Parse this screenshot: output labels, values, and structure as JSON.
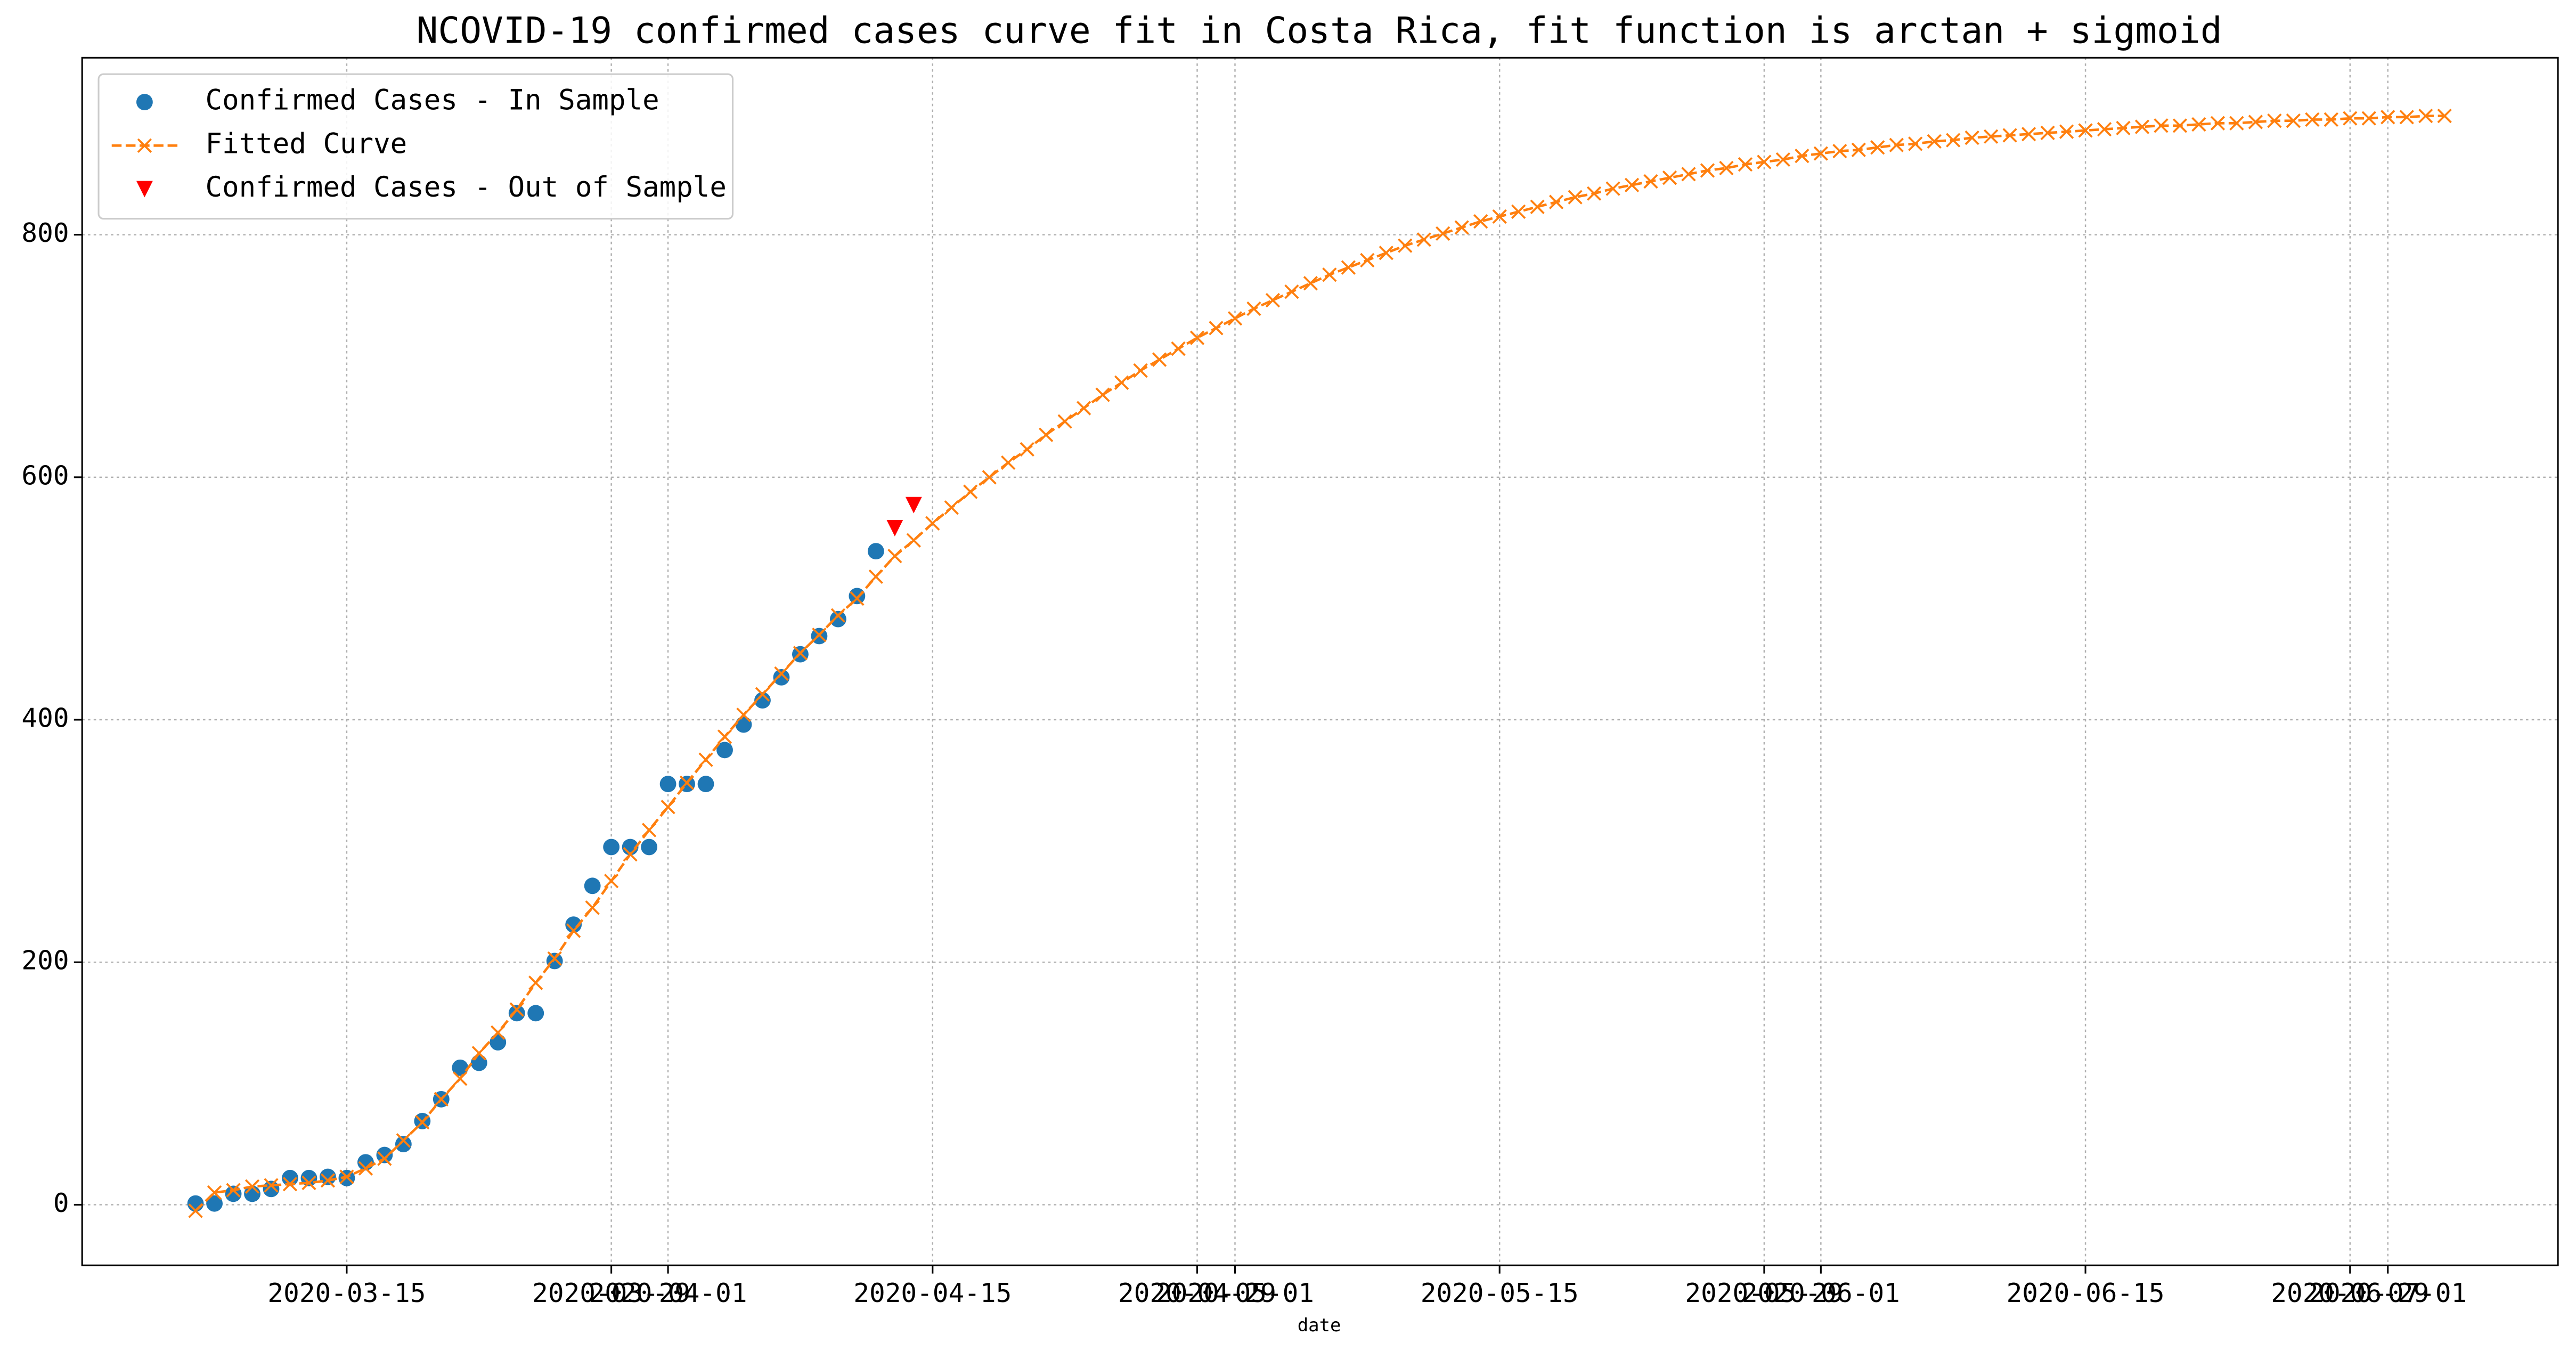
{
  "chart_data": {
    "type": "line",
    "title": "NCOVID-19 confirmed cases curve fit in Costa Rica, fit function is arctan + sigmoid",
    "x_label": "date",
    "x": [
      "2020-03-07",
      "2020-03-08",
      "2020-03-09",
      "2020-03-10",
      "2020-03-11",
      "2020-03-12",
      "2020-03-13",
      "2020-03-14",
      "2020-03-15",
      "2020-03-16",
      "2020-03-17",
      "2020-03-18",
      "2020-03-19",
      "2020-03-20",
      "2020-03-21",
      "2020-03-22",
      "2020-03-23",
      "2020-03-24",
      "2020-03-25",
      "2020-03-26",
      "2020-03-27",
      "2020-03-28",
      "2020-03-29",
      "2020-03-30",
      "2020-03-31",
      "2020-04-01",
      "2020-04-02",
      "2020-04-03",
      "2020-04-04",
      "2020-04-05",
      "2020-04-06",
      "2020-04-07",
      "2020-04-08",
      "2020-04-09",
      "2020-04-10",
      "2020-04-11",
      "2020-04-12",
      "2020-04-13",
      "2020-04-14",
      "2020-04-15",
      "2020-04-16",
      "2020-04-17",
      "2020-04-18",
      "2020-04-19",
      "2020-04-20",
      "2020-04-21",
      "2020-04-22",
      "2020-04-23",
      "2020-04-24",
      "2020-04-25",
      "2020-04-26",
      "2020-04-27",
      "2020-04-28",
      "2020-04-29",
      "2020-04-30",
      "2020-05-01",
      "2020-05-02",
      "2020-05-03",
      "2020-05-04",
      "2020-05-05",
      "2020-05-06",
      "2020-05-07",
      "2020-05-08",
      "2020-05-09",
      "2020-05-10",
      "2020-05-11",
      "2020-05-12",
      "2020-05-13",
      "2020-05-14",
      "2020-05-15",
      "2020-05-16",
      "2020-05-17",
      "2020-05-18",
      "2020-05-19",
      "2020-05-20",
      "2020-05-21",
      "2020-05-22",
      "2020-05-23",
      "2020-05-24",
      "2020-05-25",
      "2020-05-26",
      "2020-05-27",
      "2020-05-28",
      "2020-05-29",
      "2020-05-30",
      "2020-05-31",
      "2020-06-01",
      "2020-06-02",
      "2020-06-03",
      "2020-06-04",
      "2020-06-05",
      "2020-06-06",
      "2020-06-07",
      "2020-06-08",
      "2020-06-09",
      "2020-06-10",
      "2020-06-11",
      "2020-06-12",
      "2020-06-13",
      "2020-06-14",
      "2020-06-15",
      "2020-06-16",
      "2020-06-17",
      "2020-06-18",
      "2020-06-19",
      "2020-06-20",
      "2020-06-21",
      "2020-06-22",
      "2020-06-23",
      "2020-06-24",
      "2020-06-25",
      "2020-06-26",
      "2020-06-27",
      "2020-06-28",
      "2020-06-29",
      "2020-06-30",
      "2020-07-01",
      "2020-07-02",
      "2020-07-03",
      "2020-07-04"
    ],
    "series": [
      {
        "name": "Confirmed Cases - In Sample",
        "color": "#1f77b4",
        "marker": "o",
        "values": [
          1,
          1,
          9,
          9,
          13,
          22,
          22,
          23,
          22,
          35,
          41,
          50,
          69,
          87,
          113,
          117,
          134,
          158,
          158,
          201,
          231,
          263,
          295,
          295,
          295,
          347,
          347,
          347,
          375,
          396,
          416,
          435,
          454,
          469,
          483,
          502,
          539,
          null,
          null,
          null,
          null,
          null,
          null,
          null,
          null,
          null,
          null,
          null,
          null,
          null,
          null,
          null,
          null,
          null,
          null,
          null,
          null,
          null,
          null,
          null,
          null,
          null,
          null,
          null,
          null,
          null,
          null,
          null,
          null,
          null,
          null,
          null,
          null,
          null,
          null,
          null,
          null,
          null,
          null,
          null,
          null,
          null,
          null,
          null,
          null,
          null,
          null,
          null,
          null,
          null,
          null,
          null,
          null,
          null,
          null,
          null,
          null,
          null,
          null,
          null,
          null,
          null,
          null,
          null,
          null,
          null,
          null,
          null,
          null,
          null,
          null,
          null,
          null,
          null,
          null,
          null,
          null,
          null,
          null,
          null
        ]
      },
      {
        "name": "Fitted Curve",
        "color": "#ff7f0e",
        "marker": "x",
        "linestyle": "dashed",
        "values": [
          -5,
          10,
          12,
          15,
          16,
          17,
          18,
          20,
          23,
          30,
          38,
          53,
          68,
          87,
          104,
          125,
          142,
          161,
          183,
          203,
          226,
          245,
          267,
          289,
          309,
          328,
          348,
          367,
          386,
          404,
          421,
          438,
          455,
          470,
          486,
          500,
          518,
          535,
          548,
          562,
          575,
          588,
          600,
          612,
          623,
          635,
          646,
          657,
          668,
          678,
          688,
          697,
          706,
          715,
          723,
          731,
          739,
          746,
          753,
          760,
          767,
          773,
          779,
          785,
          791,
          796,
          801,
          806,
          811,
          815,
          819,
          823,
          827,
          831,
          834,
          838,
          841,
          844,
          847,
          850,
          853,
          855,
          858,
          860,
          862,
          865,
          867,
          869,
          870,
          872,
          874,
          875,
          877,
          878,
          880,
          881,
          882,
          883,
          884,
          885,
          886,
          887,
          888,
          889,
          890,
          890,
          891,
          892,
          892,
          893,
          894,
          894,
          895,
          895,
          896,
          896,
          897,
          897,
          898,
          898
        ]
      },
      {
        "name": "Confirmed Cases - Out of Sample",
        "color": "red",
        "marker": "v",
        "values": [
          null,
          null,
          null,
          null,
          null,
          null,
          null,
          null,
          null,
          null,
          null,
          null,
          null,
          null,
          null,
          null,
          null,
          null,
          null,
          null,
          null,
          null,
          null,
          null,
          null,
          null,
          null,
          null,
          null,
          null,
          null,
          null,
          null,
          null,
          null,
          null,
          null,
          558,
          577,
          null,
          null,
          null,
          null,
          null,
          null,
          null,
          null,
          null,
          null,
          null,
          null,
          null,
          null,
          null,
          null,
          null,
          null,
          null,
          null,
          null,
          null,
          null,
          null,
          null,
          null,
          null,
          null,
          null,
          null,
          null,
          null,
          null,
          null,
          null,
          null,
          null,
          null,
          null,
          null,
          null,
          null,
          null,
          null,
          null,
          null,
          null,
          null,
          null,
          null,
          null,
          null,
          null,
          null,
          null,
          null,
          null,
          null,
          null,
          null,
          null,
          null,
          null,
          null,
          null,
          null,
          null,
          null,
          null,
          null,
          null,
          null,
          null,
          null,
          null,
          null,
          null,
          null,
          null,
          null,
          null
        ]
      }
    ],
    "xlim": [
      "2020-03-01",
      "2020-07-10"
    ],
    "xticks": [
      "2020-03-15",
      "2020-03-29",
      "2020-04-01",
      "2020-04-15",
      "2020-04-29",
      "2020-05-01",
      "2020-05-15",
      "2020-05-29",
      "2020-06-01",
      "2020-06-15",
      "2020-06-29",
      "2020-07-01"
    ],
    "ylim": [
      -50,
      946
    ],
    "yticks": [
      0,
      200,
      400,
      600,
      800
    ],
    "grid": true,
    "legend": "upper left"
  }
}
